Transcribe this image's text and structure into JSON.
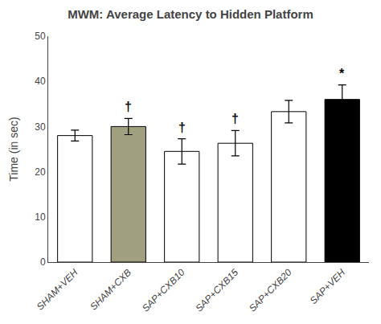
{
  "chart_data": {
    "type": "bar",
    "title": "MWM: Average Latency to Hidden Platform",
    "ylabel": "Time (in sec)",
    "categories": [
      "SHAM+VEH",
      "SHAM+CXB",
      "SAP+CXB10",
      "SAP+CXB15",
      "SAP+CXB20",
      "SAP+VEH"
    ],
    "values": [
      28.0,
      30.0,
      24.5,
      26.3,
      33.3,
      36.0
    ],
    "errors": [
      1.2,
      1.8,
      2.8,
      2.8,
      2.5,
      3.2
    ],
    "annotations": [
      null,
      "†",
      "†",
      "†",
      null,
      "*"
    ],
    "colors": [
      "white",
      "#a0a080",
      "white",
      "white",
      "white",
      "black"
    ],
    "ylim": [
      0,
      50
    ],
    "yticks": [
      0,
      10,
      20,
      30,
      40,
      50
    ],
    "grid": false
  }
}
